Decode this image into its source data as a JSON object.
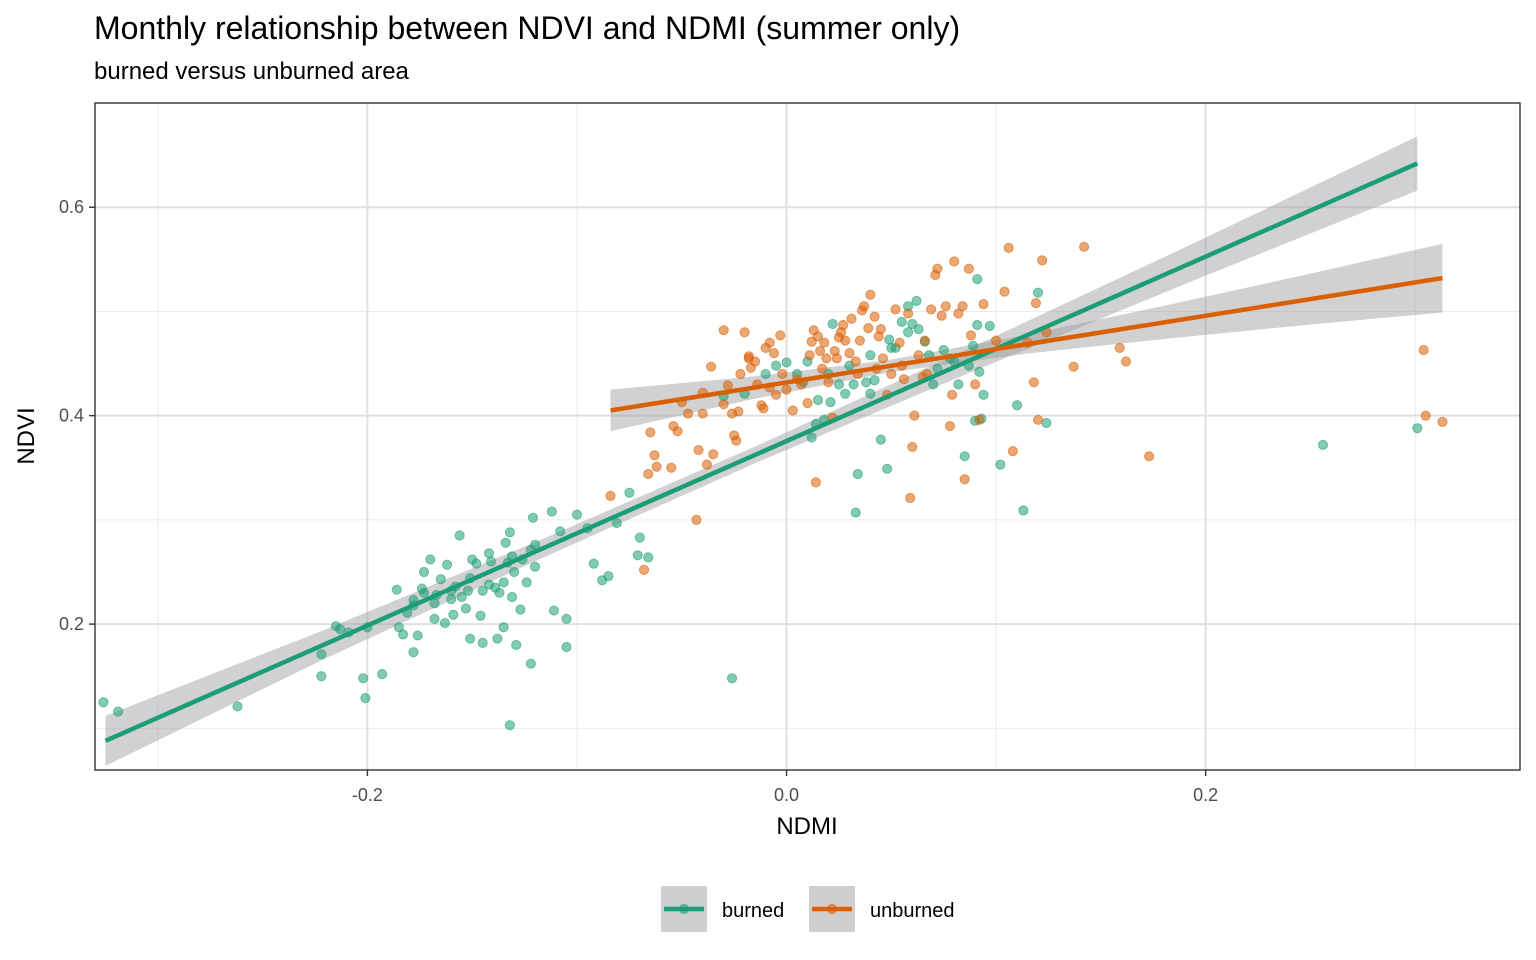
{
  "chart_data": {
    "type": "scatter",
    "title": "Monthly relationship between NDVI and NDMI (summer only)",
    "subtitle": "burned versus unburned area",
    "xlabel": "NDMI",
    "ylabel": "NDVI",
    "xlim": [
      -0.33,
      0.35
    ],
    "ylim": [
      0.06,
      0.7
    ],
    "x_ticks": [
      -0.2,
      0.0,
      0.2
    ],
    "x_tick_labels": [
      "-0.2",
      "0.0",
      "0.2"
    ],
    "y_ticks": [
      0.2,
      0.4,
      0.6
    ],
    "y_tick_labels": [
      "0.2",
      "0.4",
      "0.6"
    ],
    "grid": true,
    "legend_position": "bottom",
    "series": [
      {
        "name": "burned",
        "color": "#1b9e77",
        "fit_line": {
          "x": [
            -0.325,
            0.301
          ],
          "y": [
            0.088,
            0.642
          ]
        },
        "fit_band_halfwidth": [
          0.024,
          0.014,
          0.009,
          0.008,
          0.012,
          0.018,
          0.026
        ],
        "points": [
          [
            -0.326,
            0.125
          ],
          [
            -0.319,
            0.116
          ],
          [
            -0.262,
            0.121
          ],
          [
            -0.222,
            0.15
          ],
          [
            -0.222,
            0.171
          ],
          [
            -0.202,
            0.148
          ],
          [
            -0.201,
            0.129
          ],
          [
            -0.193,
            0.152
          ],
          [
            -0.178,
            0.173
          ],
          [
            -0.176,
            0.189
          ],
          [
            -0.163,
            0.201
          ],
          [
            -0.159,
            0.209
          ],
          [
            -0.153,
            0.215
          ],
          [
            -0.168,
            0.22
          ],
          [
            -0.173,
            0.23
          ],
          [
            -0.16,
            0.224
          ],
          [
            -0.146,
            0.208
          ],
          [
            -0.151,
            0.186
          ],
          [
            -0.145,
            0.182
          ],
          [
            -0.138,
            0.186
          ],
          [
            -0.135,
            0.197
          ],
          [
            -0.129,
            0.18
          ],
          [
            -0.122,
            0.162
          ],
          [
            -0.132,
            0.103
          ],
          [
            -0.127,
            0.214
          ],
          [
            -0.111,
            0.213
          ],
          [
            -0.105,
            0.205
          ],
          [
            -0.105,
            0.178
          ],
          [
            -0.213,
            0.195
          ],
          [
            -0.209,
            0.192
          ],
          [
            -0.215,
            0.198
          ],
          [
            -0.2,
            0.197
          ],
          [
            -0.185,
            0.197
          ],
          [
            -0.183,
            0.19
          ],
          [
            -0.186,
            0.233
          ],
          [
            -0.178,
            0.223
          ],
          [
            -0.174,
            0.234
          ],
          [
            -0.167,
            0.228
          ],
          [
            -0.168,
            0.205
          ],
          [
            -0.16,
            0.232
          ],
          [
            -0.158,
            0.236
          ],
          [
            -0.155,
            0.226
          ],
          [
            -0.152,
            0.232
          ],
          [
            -0.151,
            0.244
          ],
          [
            -0.148,
            0.258
          ],
          [
            -0.145,
            0.232
          ],
          [
            -0.142,
            0.238
          ],
          [
            -0.139,
            0.235
          ],
          [
            -0.137,
            0.23
          ],
          [
            -0.135,
            0.24
          ],
          [
            -0.13,
            0.25
          ],
          [
            -0.133,
            0.259
          ],
          [
            -0.131,
            0.265
          ],
          [
            -0.126,
            0.262
          ],
          [
            -0.122,
            0.271
          ],
          [
            -0.12,
            0.276
          ],
          [
            -0.134,
            0.278
          ],
          [
            -0.132,
            0.288
          ],
          [
            -0.121,
            0.302
          ],
          [
            -0.112,
            0.308
          ],
          [
            -0.1,
            0.305
          ],
          [
            -0.108,
            0.289
          ],
          [
            -0.095,
            0.292
          ],
          [
            -0.092,
            0.258
          ],
          [
            -0.085,
            0.246
          ],
          [
            -0.081,
            0.297
          ],
          [
            -0.07,
            0.283
          ],
          [
            -0.075,
            0.326
          ],
          [
            -0.071,
            0.266
          ],
          [
            -0.066,
            0.264
          ],
          [
            -0.088,
            0.242
          ],
          [
            -0.124,
            0.24
          ],
          [
            -0.156,
            0.285
          ],
          [
            -0.162,
            0.257
          ],
          [
            -0.173,
            0.25
          ],
          [
            -0.17,
            0.262
          ],
          [
            -0.15,
            0.262
          ],
          [
            -0.142,
            0.268
          ],
          [
            -0.141,
            0.26
          ],
          [
            -0.12,
            0.255
          ],
          [
            -0.131,
            0.226
          ],
          [
            -0.178,
            0.218
          ],
          [
            -0.165,
            0.243
          ],
          [
            -0.181,
            0.211
          ],
          [
            -0.03,
            0.419
          ],
          [
            -0.026,
            0.148
          ],
          [
            -0.02,
            0.421
          ],
          [
            -0.01,
            0.44
          ],
          [
            -0.005,
            0.448
          ],
          [
            0.0,
            0.451
          ],
          [
            0.005,
            0.44
          ],
          [
            0.012,
            0.379
          ],
          [
            0.014,
            0.392
          ],
          [
            0.018,
            0.396
          ],
          [
            0.02,
            0.44
          ],
          [
            0.021,
            0.413
          ],
          [
            0.022,
            0.488
          ],
          [
            0.025,
            0.43
          ],
          [
            0.028,
            0.421
          ],
          [
            0.03,
            0.448
          ],
          [
            0.032,
            0.43
          ],
          [
            0.033,
            0.307
          ],
          [
            0.034,
            0.344
          ],
          [
            0.038,
            0.432
          ],
          [
            0.04,
            0.421
          ],
          [
            0.042,
            0.434
          ],
          [
            0.045,
            0.377
          ],
          [
            0.048,
            0.349
          ],
          [
            0.05,
            0.465
          ],
          [
            0.052,
            0.465
          ],
          [
            0.055,
            0.49
          ],
          [
            0.058,
            0.505
          ],
          [
            0.06,
            0.488
          ],
          [
            0.062,
            0.51
          ],
          [
            0.066,
            0.471
          ],
          [
            0.068,
            0.458
          ],
          [
            0.07,
            0.43
          ],
          [
            0.072,
            0.445
          ],
          [
            0.075,
            0.463
          ],
          [
            0.078,
            0.455
          ],
          [
            0.08,
            0.452
          ],
          [
            0.082,
            0.43
          ],
          [
            0.085,
            0.361
          ],
          [
            0.087,
            0.448
          ],
          [
            0.089,
            0.467
          ],
          [
            0.09,
            0.395
          ],
          [
            0.091,
            0.531
          ],
          [
            0.091,
            0.487
          ],
          [
            0.092,
            0.442
          ],
          [
            0.094,
            0.42
          ],
          [
            0.093,
            0.397
          ],
          [
            0.097,
            0.486
          ],
          [
            0.102,
            0.353
          ],
          [
            0.11,
            0.41
          ],
          [
            0.113,
            0.309
          ],
          [
            0.12,
            0.518
          ],
          [
            0.124,
            0.393
          ],
          [
            0.256,
            0.372
          ],
          [
            0.301,
            0.388
          ],
          [
            0.015,
            0.415
          ],
          [
            0.008,
            0.432
          ],
          [
            0.01,
            0.452
          ],
          [
            0.04,
            0.458
          ],
          [
            0.058,
            0.48
          ],
          [
            0.063,
            0.483
          ],
          [
            0.049,
            0.473
          ]
        ]
      },
      {
        "name": "unburned",
        "color": "#d95f02",
        "fit_line": {
          "x": [
            -0.084,
            0.313
          ],
          "y": [
            0.405,
            0.532
          ]
        },
        "fit_band_halfwidth": [
          0.02,
          0.011,
          0.006,
          0.009,
          0.016,
          0.024,
          0.033
        ],
        "points": [
          [
            -0.084,
            0.323
          ],
          [
            -0.068,
            0.252
          ],
          [
            -0.066,
            0.344
          ],
          [
            -0.065,
            0.384
          ],
          [
            -0.063,
            0.362
          ],
          [
            -0.062,
            0.351
          ],
          [
            -0.055,
            0.35
          ],
          [
            -0.054,
            0.39
          ],
          [
            -0.052,
            0.385
          ],
          [
            -0.05,
            0.413
          ],
          [
            -0.047,
            0.402
          ],
          [
            -0.043,
            0.3
          ],
          [
            -0.042,
            0.367
          ],
          [
            -0.04,
            0.402
          ],
          [
            -0.04,
            0.422
          ],
          [
            -0.038,
            0.353
          ],
          [
            -0.036,
            0.447
          ],
          [
            -0.035,
            0.363
          ],
          [
            -0.03,
            0.482
          ],
          [
            -0.03,
            0.411
          ],
          [
            -0.028,
            0.429
          ],
          [
            -0.026,
            0.402
          ],
          [
            -0.025,
            0.381
          ],
          [
            -0.024,
            0.376
          ],
          [
            -0.023,
            0.404
          ],
          [
            -0.022,
            0.44
          ],
          [
            -0.02,
            0.48
          ],
          [
            -0.018,
            0.457
          ],
          [
            -0.017,
            0.446
          ],
          [
            -0.015,
            0.452
          ],
          [
            -0.014,
            0.43
          ],
          [
            -0.012,
            0.41
          ],
          [
            -0.011,
            0.407
          ],
          [
            -0.01,
            0.465
          ],
          [
            -0.008,
            0.47
          ],
          [
            -0.006,
            0.46
          ],
          [
            -0.005,
            0.42
          ],
          [
            -0.003,
            0.477
          ],
          [
            -0.002,
            0.44
          ],
          [
            0.0,
            0.425
          ],
          [
            0.003,
            0.405
          ],
          [
            0.005,
            0.435
          ],
          [
            0.007,
            0.43
          ],
          [
            0.01,
            0.412
          ],
          [
            0.012,
            0.471
          ],
          [
            0.013,
            0.482
          ],
          [
            0.014,
            0.336
          ],
          [
            0.015,
            0.476
          ],
          [
            0.016,
            0.462
          ],
          [
            0.017,
            0.445
          ],
          [
            0.018,
            0.47
          ],
          [
            0.019,
            0.455
          ],
          [
            0.02,
            0.432
          ],
          [
            0.022,
            0.398
          ],
          [
            0.024,
            0.455
          ],
          [
            0.025,
            0.475
          ],
          [
            0.026,
            0.48
          ],
          [
            0.027,
            0.487
          ],
          [
            0.028,
            0.472
          ],
          [
            0.03,
            0.46
          ],
          [
            0.031,
            0.493
          ],
          [
            0.033,
            0.452
          ],
          [
            0.035,
            0.472
          ],
          [
            0.036,
            0.501
          ],
          [
            0.037,
            0.505
          ],
          [
            0.039,
            0.484
          ],
          [
            0.04,
            0.516
          ],
          [
            0.042,
            0.495
          ],
          [
            0.044,
            0.476
          ],
          [
            0.045,
            0.483
          ],
          [
            0.046,
            0.455
          ],
          [
            0.048,
            0.42
          ],
          [
            0.05,
            0.44
          ],
          [
            0.052,
            0.502
          ],
          [
            0.054,
            0.47
          ],
          [
            0.055,
            0.448
          ],
          [
            0.056,
            0.435
          ],
          [
            0.058,
            0.498
          ],
          [
            0.059,
            0.321
          ],
          [
            0.06,
            0.37
          ],
          [
            0.061,
            0.4
          ],
          [
            0.063,
            0.458
          ],
          [
            0.065,
            0.437
          ],
          [
            0.067,
            0.44
          ],
          [
            0.069,
            0.502
          ],
          [
            0.071,
            0.535
          ],
          [
            0.072,
            0.541
          ],
          [
            0.074,
            0.496
          ],
          [
            0.076,
            0.505
          ],
          [
            0.078,
            0.39
          ],
          [
            0.079,
            0.42
          ],
          [
            0.08,
            0.548
          ],
          [
            0.082,
            0.498
          ],
          [
            0.084,
            0.505
          ],
          [
            0.085,
            0.339
          ],
          [
            0.087,
            0.541
          ],
          [
            0.088,
            0.477
          ],
          [
            0.09,
            0.43
          ],
          [
            0.092,
            0.396
          ],
          [
            0.094,
            0.507
          ],
          [
            0.1,
            0.472
          ],
          [
            0.104,
            0.519
          ],
          [
            0.106,
            0.561
          ],
          [
            0.108,
            0.366
          ],
          [
            0.115,
            0.47
          ],
          [
            0.118,
            0.432
          ],
          [
            0.119,
            0.508
          ],
          [
            0.12,
            0.396
          ],
          [
            0.122,
            0.549
          ],
          [
            0.124,
            0.48
          ],
          [
            0.137,
            0.447
          ],
          [
            0.142,
            0.562
          ],
          [
            0.159,
            0.465
          ],
          [
            0.162,
            0.452
          ],
          [
            0.173,
            0.361
          ],
          [
            0.304,
            0.463
          ],
          [
            0.305,
            0.4
          ],
          [
            0.313,
            0.394
          ],
          [
            0.043,
            0.445
          ],
          [
            0.023,
            0.462
          ],
          [
            -0.018,
            0.455
          ],
          [
            -0.008,
            0.427
          ],
          [
            0.011,
            0.458
          ],
          [
            0.034,
            0.44
          ],
          [
            0.066,
            0.472
          ]
        ]
      }
    ]
  }
}
